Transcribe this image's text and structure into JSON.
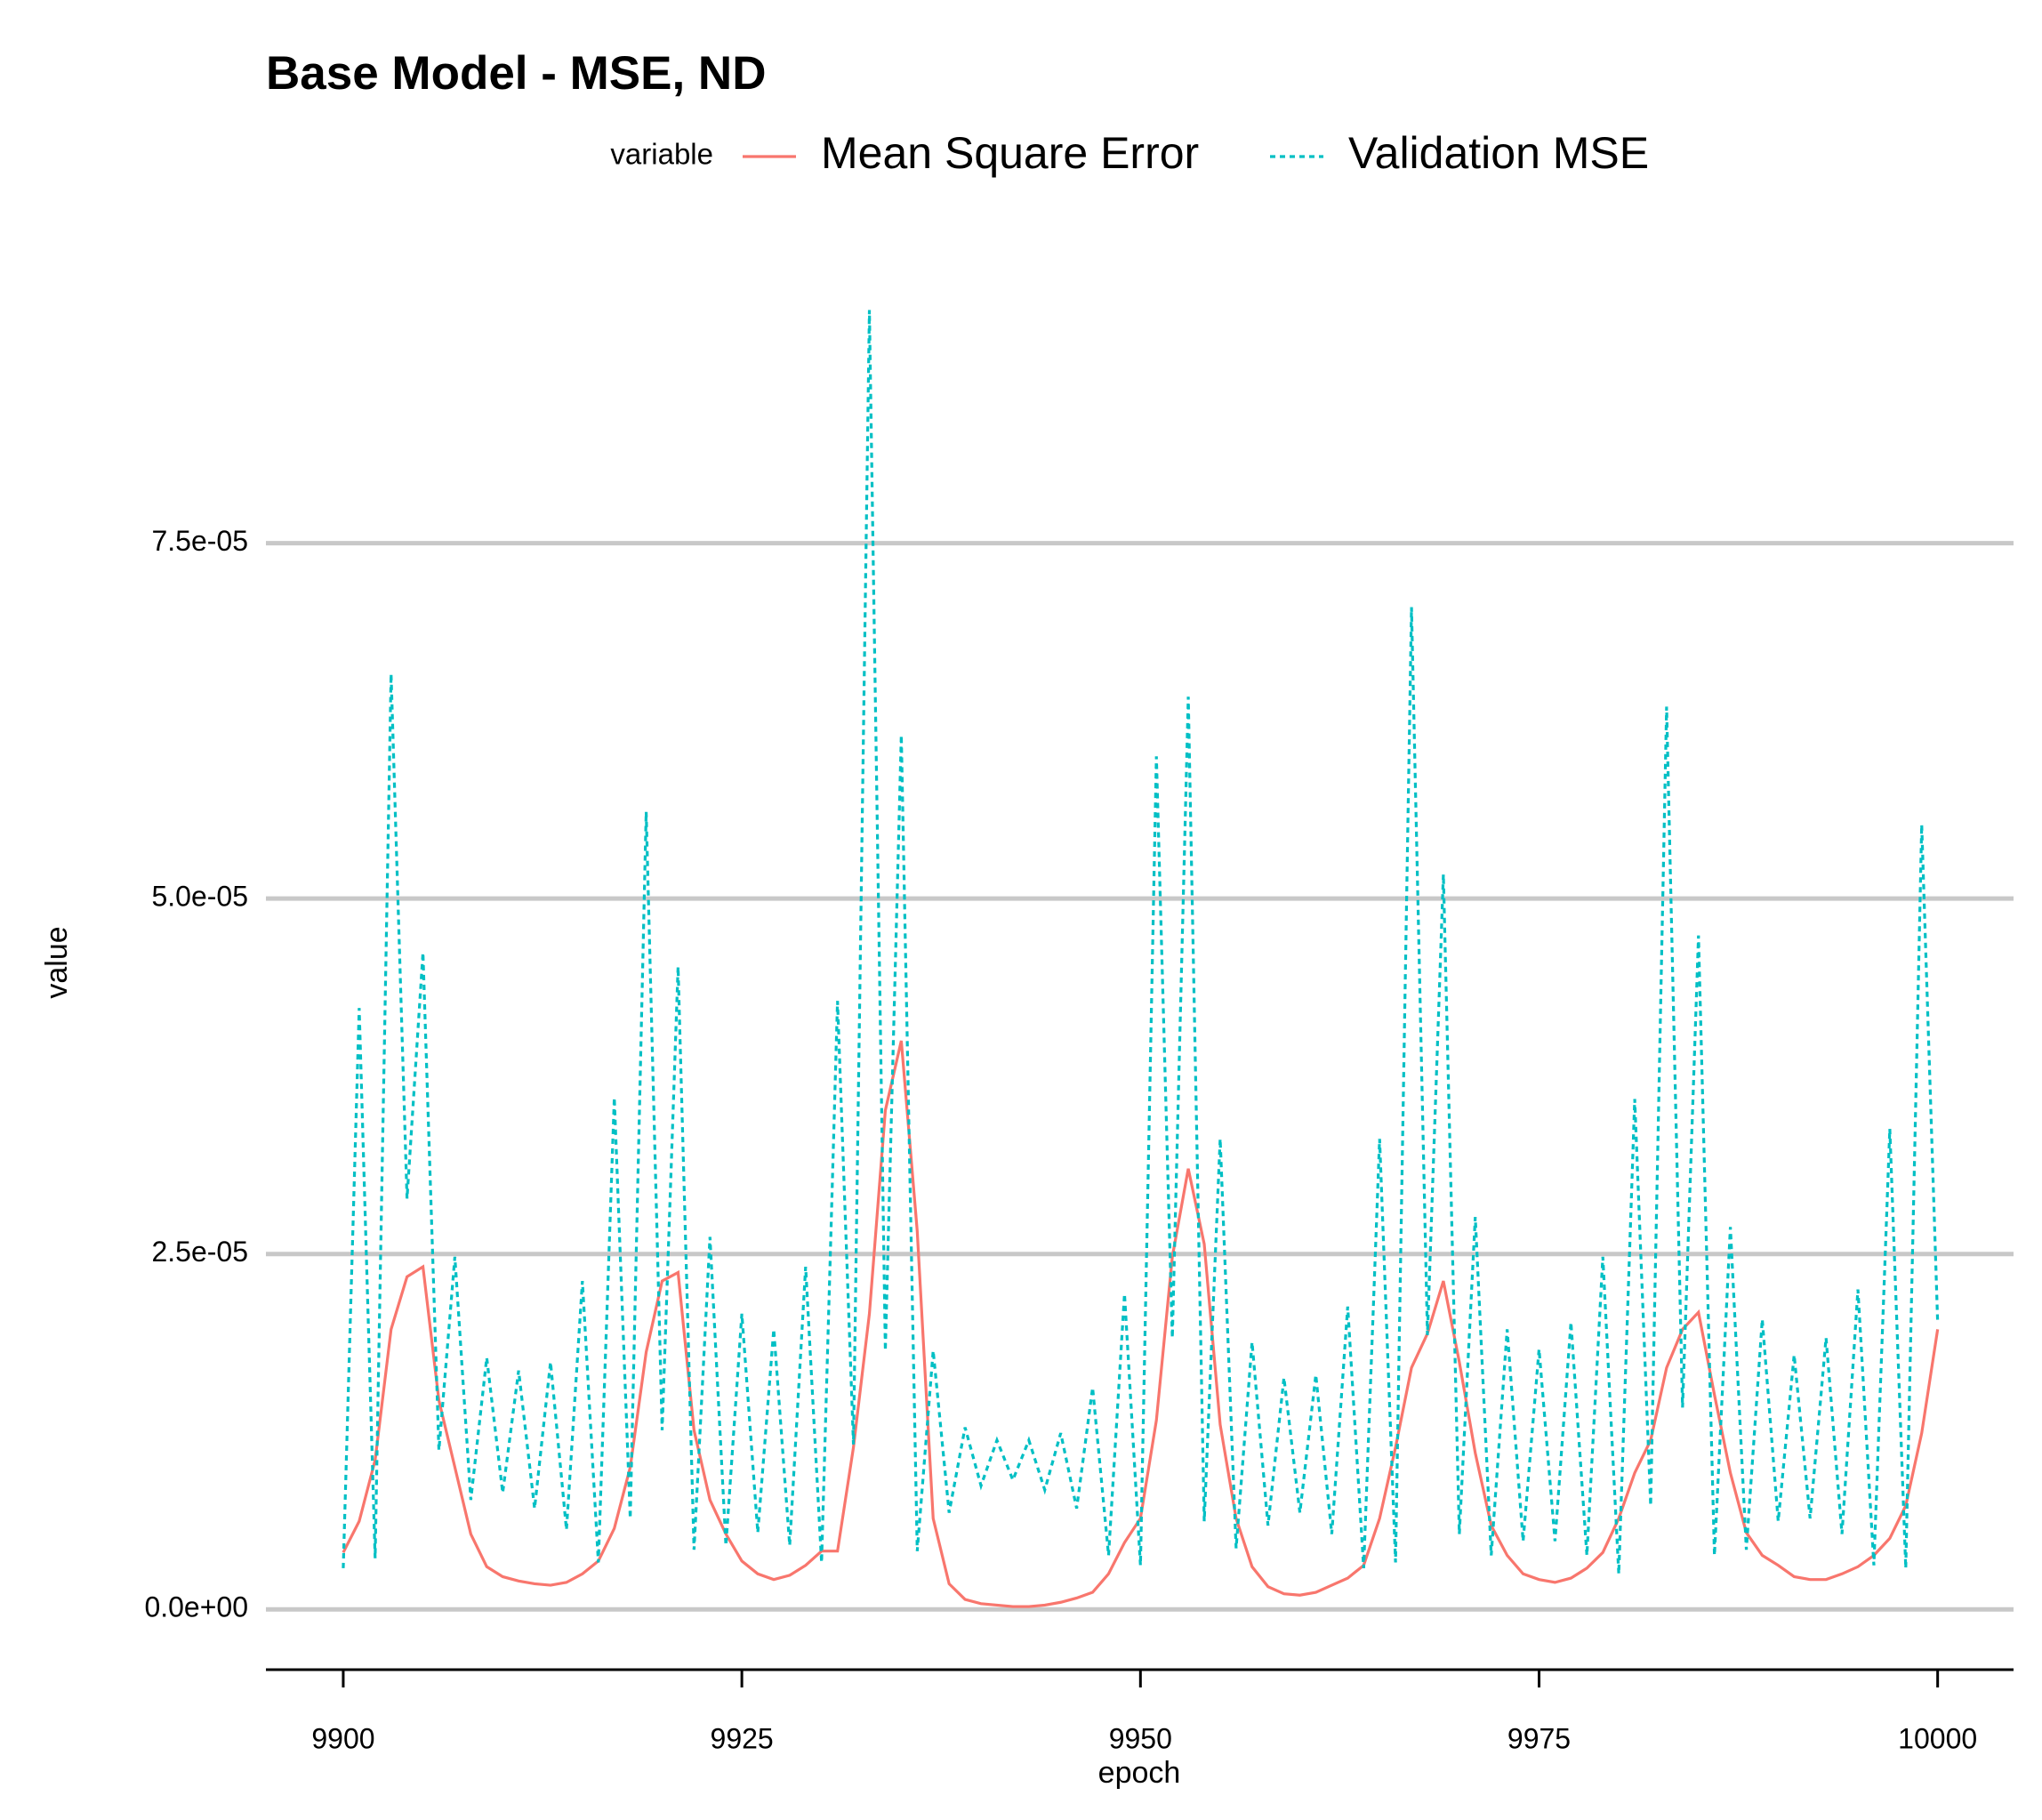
{
  "chart_data": {
    "type": "line",
    "title": "Base Model - MSE, ND",
    "x_label": "epoch",
    "y_label": "value",
    "legend_title": "variable",
    "x": [
      9900,
      9901,
      9902,
      9903,
      9904,
      9905,
      9906,
      9907,
      9908,
      9909,
      9910,
      9911,
      9912,
      9913,
      9914,
      9915,
      9916,
      9917,
      9918,
      9919,
      9920,
      9921,
      9922,
      9923,
      9924,
      9925,
      9926,
      9927,
      9928,
      9929,
      9930,
      9931,
      9932,
      9933,
      9934,
      9935,
      9936,
      9937,
      9938,
      9939,
      9940,
      9941,
      9942,
      9943,
      9944,
      9945,
      9946,
      9947,
      9948,
      9949,
      9950,
      9951,
      9952,
      9953,
      9954,
      9955,
      9956,
      9957,
      9958,
      9959,
      9960,
      9961,
      9962,
      9963,
      9964,
      9965,
      9966,
      9967,
      9968,
      9969,
      9970,
      9971,
      9972,
      9973,
      9974,
      9975,
      9976,
      9977,
      9978,
      9979,
      9980,
      9981,
      9982,
      9983,
      9984,
      9985,
      9986,
      9987,
      9988,
      9989,
      9990,
      9991,
      9992,
      9993,
      9994,
      9995,
      9996,
      9997,
      9998,
      9999,
      10000
    ],
    "series": [
      {
        "name": "Mean Square Error",
        "color": "#F8766D",
        "dash": "solid",
        "values": [
          4e-06,
          6.2e-06,
          1.05e-05,
          1.97e-05,
          2.34e-05,
          2.41e-05,
          1.47e-05,
          1e-05,
          5.3e-06,
          3e-06,
          2.3e-06,
          2e-06,
          1.8e-06,
          1.7e-06,
          1.9e-06,
          2.5e-06,
          3.4e-06,
          5.7e-06,
          1e-05,
          1.81e-05,
          2.31e-05,
          2.37e-05,
          1.26e-05,
          7.7e-06,
          5.3e-06,
          3.4e-06,
          2.5e-06,
          2.1e-06,
          2.4e-06,
          3.1e-06,
          4.1e-06,
          4.1e-06,
          1.14e-05,
          2.08e-05,
          3.51e-05,
          4e-05,
          2.66e-05,
          6.4e-06,
          1.8e-06,
          7e-07,
          4e-07,
          3e-07,
          2e-07,
          2e-07,
          3e-07,
          5e-07,
          8e-07,
          1.2e-06,
          2.5e-06,
          4.7e-06,
          6.4e-06,
          1.33e-05,
          2.48e-05,
          3.1e-05,
          2.57e-05,
          1.3e-05,
          6.4e-06,
          3e-06,
          1.6e-06,
          1.1e-06,
          1e-06,
          1.2e-06,
          1.7e-06,
          2.2e-06,
          3.1e-06,
          6.4e-06,
          1.14e-05,
          1.7e-05,
          1.94e-05,
          2.31e-05,
          1.74e-05,
          1.1e-05,
          5.9e-06,
          3.8e-06,
          2.5e-06,
          2.1e-06,
          1.9e-06,
          2.2e-06,
          2.9e-06,
          4e-06,
          6.4e-06,
          9.6e-06,
          1.19e-05,
          1.7e-05,
          1.97e-05,
          2.09e-05,
          1.51e-05,
          9.6e-06,
          5.4e-06,
          3.8e-06,
          3.1e-06,
          2.3e-06,
          2.1e-06,
          2.1e-06,
          2.5e-06,
          3e-06,
          3.8e-06,
          5e-06,
          7.3e-06,
          1.24e-05,
          1.97e-05
        ]
      },
      {
        "name": "Validation MSE",
        "color": "#00BFC4",
        "dash": "dotted",
        "values": [
          2.9e-06,
          4.23e-05,
          3.6e-06,
          6.58e-05,
          2.89e-05,
          4.62e-05,
          1.12e-05,
          2.48e-05,
          7.7e-06,
          1.77e-05,
          8.2e-06,
          1.68e-05,
          7.1e-06,
          1.74e-05,
          5.6e-06,
          2.31e-05,
          3.3e-06,
          3.6e-05,
          6.4e-06,
          5.61e-05,
          1.26e-05,
          4.52e-05,
          4.2e-06,
          2.62e-05,
          4.5e-06,
          2.08e-05,
          5.4e-06,
          1.97e-05,
          4.5e-06,
          2.41e-05,
          3.3e-06,
          4.28e-05,
          1.16e-05,
          9.14e-05,
          1.82e-05,
          6.15e-05,
          4.1e-06,
          1.82e-05,
          6.8e-06,
          1.28e-05,
          8.7e-06,
          1.19e-05,
          9.1e-06,
          1.19e-05,
          8.4e-06,
          1.24e-05,
          7.1e-06,
          1.56e-05,
          3.8e-06,
          2.22e-05,
          3.1e-06,
          6e-05,
          1.91e-05,
          6.42e-05,
          6.2e-06,
          3.31e-05,
          4.3e-06,
          1.88e-05,
          5.9e-06,
          1.63e-05,
          6.8e-06,
          1.65e-05,
          5.3e-06,
          2.13e-05,
          2.9e-06,
          3.31e-05,
          3.3e-06,
          7.05e-05,
          1.93e-05,
          5.17e-05,
          5.3e-06,
          2.76e-05,
          3.8e-06,
          1.97e-05,
          4.8e-06,
          1.83e-05,
          4.8e-06,
          2.02e-05,
          3.8e-06,
          2.48e-05,
          2.5e-06,
          3.59e-05,
          7.3e-06,
          6.35e-05,
          1.42e-05,
          4.74e-05,
          3.8e-06,
          2.69e-05,
          4.2e-06,
          2.04e-05,
          6.2e-06,
          1.79e-05,
          6.4e-06,
          1.91e-05,
          5.3e-06,
          2.25e-05,
          3.1e-06,
          3.38e-05,
          2.9e-06,
          5.52e-05,
          2.02e-05
        ]
      }
    ],
    "xlim": [
      9895.15,
      10004.76
    ],
    "xticks": [
      9900,
      9925,
      9950,
      9975,
      10000
    ],
    "ylim": [
      -4.24e-06,
      9.6e-05
    ],
    "yticks": [
      {
        "value": 0,
        "label": "0.0e+00"
      },
      {
        "value": 2.5e-05,
        "label": "2.5e-05"
      },
      {
        "value": 5e-05,
        "label": "5.0e-05"
      },
      {
        "value": 7.5e-05,
        "label": "7.5e-05"
      }
    ],
    "grid": true,
    "legend": "top"
  }
}
